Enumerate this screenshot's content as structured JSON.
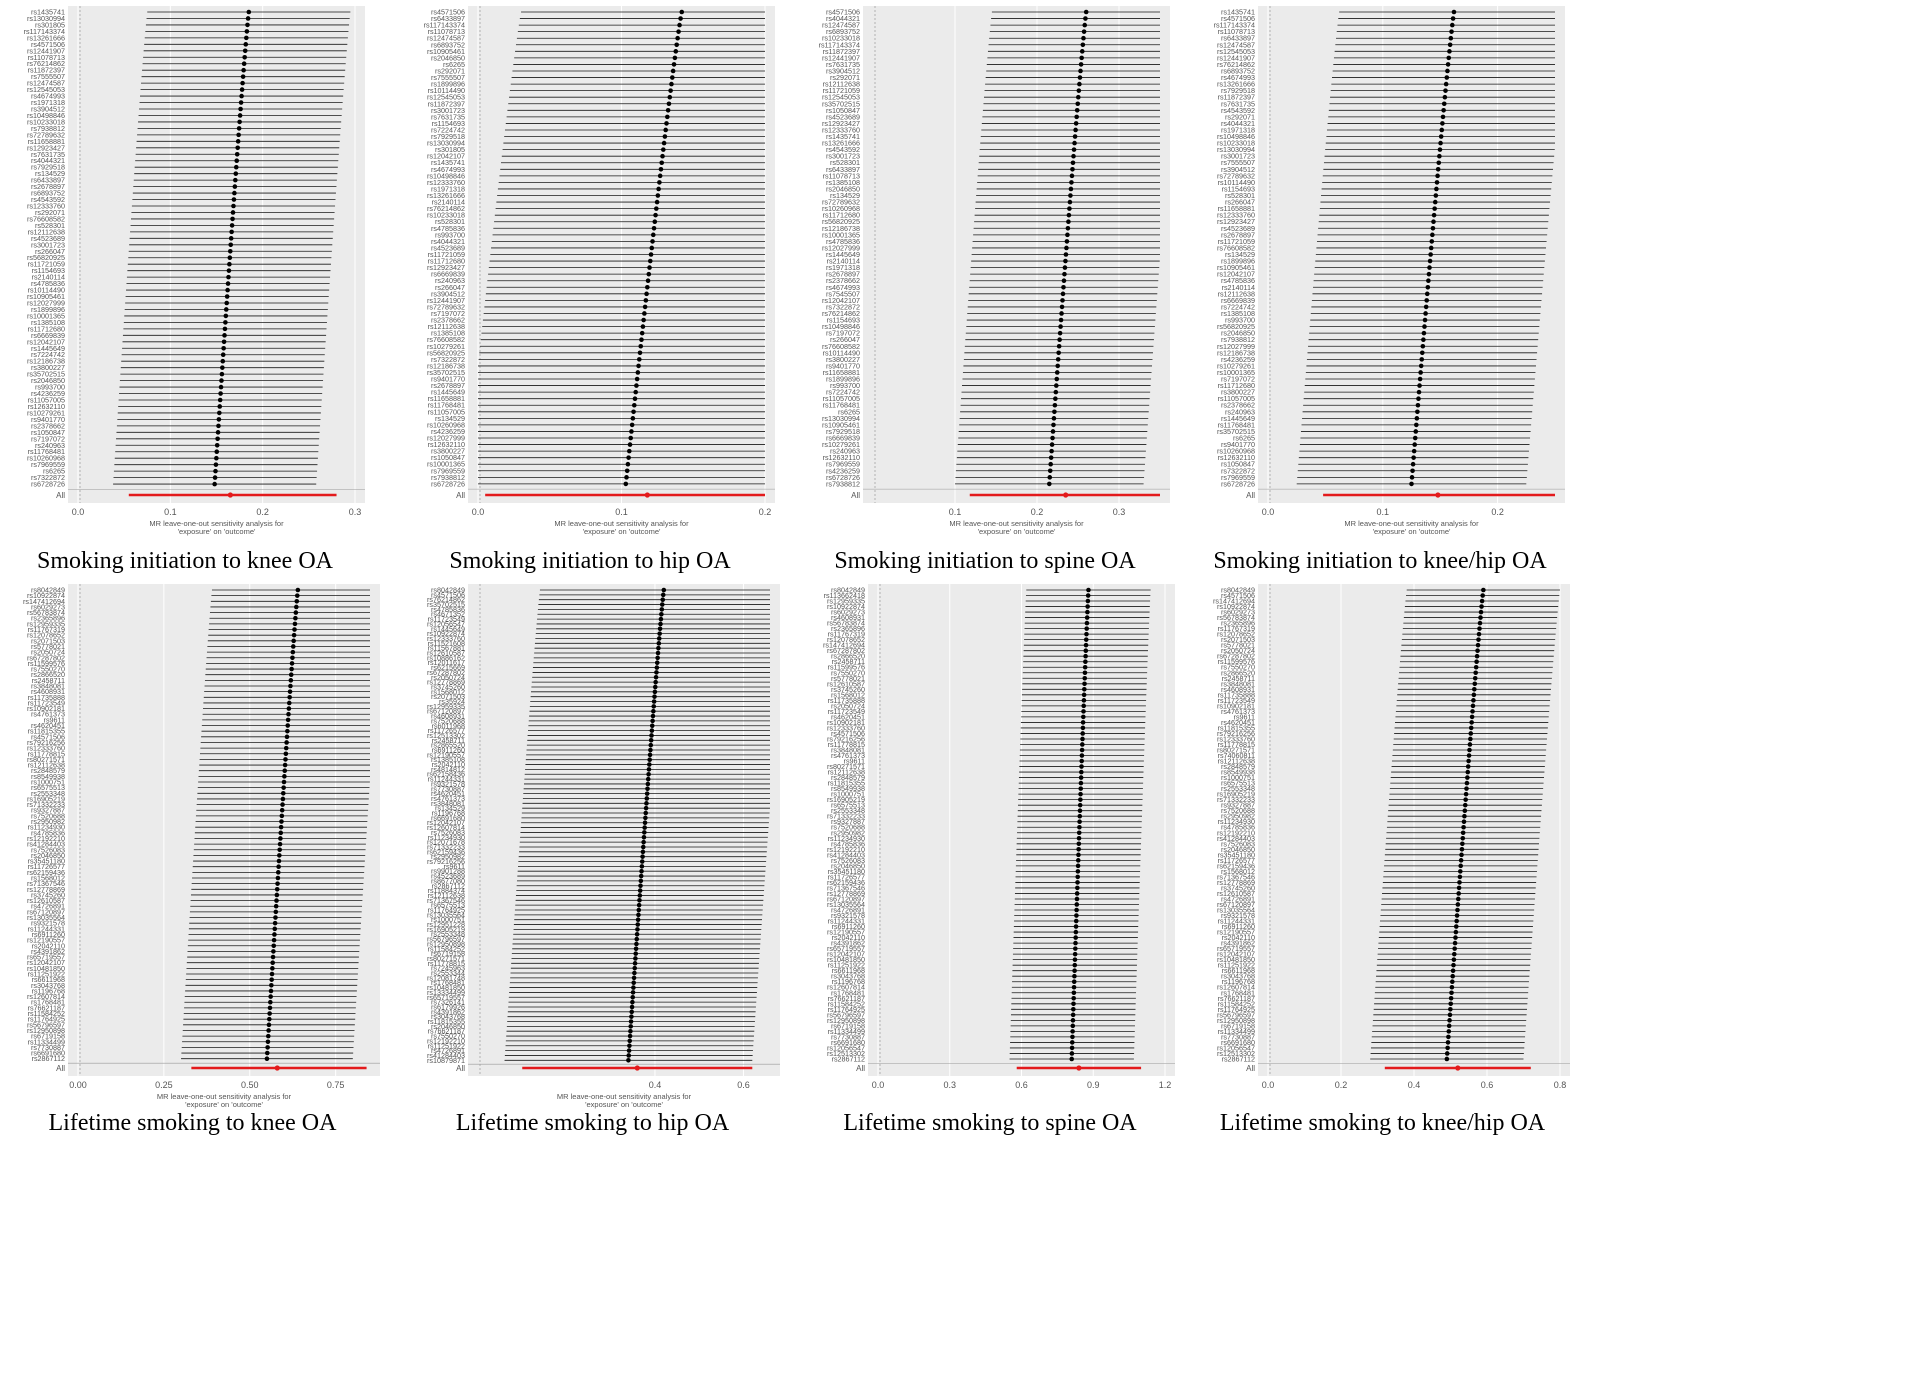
{
  "chart_data": [
    {
      "type": "scatter",
      "caption": "Smoking initiation to knee OA",
      "xlabel": "MR leave-one-out sensitivity analysis for 'exposure' on 'outcome'",
      "xlim": [
        0,
        0.3
      ],
      "xticks": [
        "0.0",
        "0.1",
        "0.2",
        "0.3"
      ],
      "overall_label": "All",
      "overall": {
        "b": 0.165,
        "lo": 0.055,
        "hi": 0.28
      },
      "snps": [
        "rs1435741",
        "rs13030994",
        "rs301805",
        "rs117143374",
        "rs13261666",
        "rs4571506",
        "rs12441907",
        "rs11078713",
        "rs76214862",
        "rs11872397",
        "rs7555507",
        "rs12474587",
        "rs12545053",
        "rs4674993",
        "rs1971318",
        "rs3904512",
        "rs10498846",
        "rs10233018",
        "rs7938812",
        "rs72789632",
        "rs11658881",
        "rs12923427",
        "rs7631735",
        "rs4044321",
        "rs7929518",
        "rs134529",
        "rs6433897",
        "rs2678897",
        "rs6893752",
        "rs4543592",
        "rs12333760",
        "rs292071",
        "rs76608582",
        "rs528301",
        "rs12112638",
        "rs4523689",
        "rs3001723",
        "rs266047",
        "rs56820925",
        "rs11721059",
        "rs1154693",
        "rs2140114",
        "rs4785836",
        "rs10114490",
        "rs10905461",
        "rs12027999",
        "rs1899896",
        "rs10001365",
        "rs1385108",
        "rs11712680",
        "rs6669839",
        "rs12042107",
        "rs1445649",
        "rs7224742",
        "rs12186738",
        "rs3800227",
        "rs35702515",
        "rs2046850",
        "rs993700",
        "rs4236259",
        "rs11057005",
        "rs12632110",
        "rs10279261",
        "rs9401770",
        "rs2378662",
        "rs1050847",
        "rs7197072",
        "rs240963",
        "rs11768481",
        "rs10260968",
        "rs7969559",
        "rs6265",
        "rs7322872",
        "rs6728726"
      ],
      "b_range": [
        0.185,
        0.148
      ],
      "ci_half": 0.11
    },
    {
      "type": "scatter",
      "caption": "Smoking initiation to hip OA",
      "xlabel": "MR leave-one-out sensitivity analysis for 'exposure' on 'outcome'",
      "xlim": [
        0,
        0.2
      ],
      "xticks": [
        "0.0",
        "0.1",
        "0.2"
      ],
      "overall_label": "All",
      "overall": {
        "b": 0.118,
        "lo": 0.005,
        "hi": 0.232
      },
      "snps": [
        "rs4571506",
        "rs6433897",
        "rs117143374",
        "rs11078713",
        "rs12474587",
        "rs6893752",
        "rs10905461",
        "rs2046850",
        "rs6265",
        "rs292071",
        "rs7555507",
        "rs1899896",
        "rs10114490",
        "rs12545053",
        "rs11872397",
        "rs3001723",
        "rs7631735",
        "rs1154693",
        "rs7224742",
        "rs7929518",
        "rs13030994",
        "rs301805",
        "rs12042107",
        "rs1435741",
        "rs4674993",
        "rs10498846",
        "rs12333760",
        "rs1971318",
        "rs13261666",
        "rs2140114",
        "rs76214862",
        "rs10233018",
        "rs528301",
        "rs4785836",
        "rs993700",
        "rs4044321",
        "rs4523689",
        "rs11721059",
        "rs11712680",
        "rs12923427",
        "rs6669839",
        "rs240963",
        "rs266047",
        "rs3904512",
        "rs12441907",
        "rs72789632",
        "rs7197072",
        "rs2378662",
        "rs12112638",
        "rs1385108",
        "rs76608582",
        "rs10279261",
        "rs56820925",
        "rs7322872",
        "rs12186738",
        "rs35702515",
        "rs9401770",
        "rs2678897",
        "rs1445649",
        "rs11658881",
        "rs11768481",
        "rs11057005",
        "rs134529",
        "rs10260968",
        "rs4236259",
        "rs12027999",
        "rs12632110",
        "rs3800227",
        "rs1050847",
        "rs10001365",
        "rs7969559",
        "rs7938812",
        "rs6728726"
      ],
      "b_range": [
        0.142,
        0.103
      ],
      "ci_half": 0.112
    },
    {
      "type": "scatter",
      "caption": "Smoking initiation to spine OA",
      "xlabel": "MR leave-one-out sensitivity analysis for 'exposure' on 'outcome'",
      "xlim": [
        0,
        0.35
      ],
      "xticks": [
        "0.1",
        "0.2",
        "0.3"
      ],
      "xtick_values": [
        0.1,
        0.2,
        0.3
      ],
      "overall_label": "All",
      "overall": {
        "b": 0.235,
        "lo": 0.118,
        "hi": 0.35
      },
      "snps": [
        "rs4571506",
        "rs4044321",
        "rs12474587",
        "rs6893752",
        "rs10233018",
        "rs117143374",
        "rs11872397",
        "rs12441907",
        "rs7631735",
        "rs3904512",
        "rs292071",
        "rs12112638",
        "rs11721059",
        "rs12545053",
        "rs35702515",
        "rs1050847",
        "rs4523689",
        "rs12923427",
        "rs12333760",
        "rs1435741",
        "rs13261666",
        "rs4543592",
        "rs3001723",
        "rs528301",
        "rs6433897",
        "rs11078713",
        "rs1385108",
        "rs2046850",
        "rs134529",
        "rs72789632",
        "rs10260968",
        "rs11712680",
        "rs56820925",
        "rs12186738",
        "rs10001365",
        "rs4785836",
        "rs12027999",
        "rs1445649",
        "rs2140114",
        "rs1971318",
        "rs2678897",
        "rs2378662",
        "rs4674993",
        "rs7545507",
        "rs12042107",
        "rs7322872",
        "rs76214862",
        "rs1154693",
        "rs10498846",
        "rs7197072",
        "rs266047",
        "rs76608582",
        "rs10114490",
        "rs3800227",
        "rs9401770",
        "rs11658881",
        "rs1899896",
        "rs993700",
        "rs7224742",
        "rs11057005",
        "rs11768481",
        "rs6265",
        "rs13030994",
        "rs10905461",
        "rs7929518",
        "rs6669839",
        "rs10279261",
        "rs240963",
        "rs12632110",
        "rs7969559",
        "rs4236259",
        "rs6728726",
        "rs7938812"
      ],
      "b_range": [
        0.26,
        0.215
      ],
      "ci_half": 0.115
    },
    {
      "type": "scatter",
      "caption": "Smoking initiation to knee/hip OA",
      "xlabel": "MR leave-one-out sensitivity analysis for 'exposure' on 'outcome'",
      "xlim": [
        0,
        0.25
      ],
      "xticks": [
        "0.0",
        "0.1",
        "0.2"
      ],
      "xtick_values": [
        0,
        0.1,
        0.2
      ],
      "overall_label": "All",
      "overall": {
        "b": 0.148,
        "lo": 0.048,
        "hi": 0.25
      },
      "snps": [
        "rs1435741",
        "rs4571506",
        "rs117143374",
        "rs11078713",
        "rs6433897",
        "rs12474587",
        "rs12545053",
        "rs12441907",
        "rs76214862",
        "rs6893752",
        "rs4674993",
        "rs13261666",
        "rs7929518",
        "rs11872397",
        "rs7631735",
        "rs4543592",
        "rs292071",
        "rs4044321",
        "rs1971318",
        "rs10498846",
        "rs10233018",
        "rs13030994",
        "rs3001723",
        "rs7555507",
        "rs3904512",
        "rs72789632",
        "rs10114490",
        "rs1154693",
        "rs528301",
        "rs266047",
        "rs11658881",
        "rs12333760",
        "rs12923427",
        "rs4523689",
        "rs2678897",
        "rs11721059",
        "rs76608582",
        "rs134529",
        "rs1899896",
        "rs10905461",
        "rs12042107",
        "rs4785836",
        "rs2140114",
        "rs12112638",
        "rs6669839",
        "rs7224742",
        "rs1385108",
        "rs993700",
        "rs56820925",
        "rs2046850",
        "rs7938812",
        "rs12027999",
        "rs12186738",
        "rs4236259",
        "rs10279261",
        "rs10001365",
        "rs7197072",
        "rs11712680",
        "rs3800227",
        "rs11057005",
        "rs2378662",
        "rs240963",
        "rs1445649",
        "rs11768481",
        "rs35702515",
        "rs6265",
        "rs9401770",
        "rs10260968",
        "rs12632110",
        "rs1050847",
        "rs7322872",
        "rs7969559",
        "rs6728726"
      ],
      "b_range": [
        0.162,
        0.125
      ],
      "ci_half": 0.1
    },
    {
      "type": "scatter",
      "caption": "Lifetime smoking to knee OA",
      "xlabel": "MR leave-one-out sensitivity analysis for 'exposure' on 'outcome'",
      "xlim": [
        0,
        0.85
      ],
      "xticks": [
        "0.00",
        "0.25",
        "0.50",
        "0.75"
      ],
      "xtick_values": [
        0,
        0.25,
        0.5,
        0.75
      ],
      "overall_label": "All",
      "overall": {
        "b": 0.58,
        "lo": 0.33,
        "hi": 0.84
      },
      "snps": [
        "rs8042849",
        "rs10922874",
        "rs147412694",
        "rs6029273",
        "rs56783874",
        "rs2365896",
        "rs12959335",
        "rs11767319",
        "rs12078652",
        "rs2071503",
        "rs5778021",
        "rs2050724",
        "rs67287802",
        "rs11599576",
        "rs7550270",
        "rs2866520",
        "rs2458711",
        "rs3848081",
        "rs4608931",
        "rs11735888",
        "rs11723549",
        "rs10902181",
        "rs4761373",
        "rs9611",
        "rs4620451",
        "rs11815355",
        "rs4571506",
        "rs79216256",
        "rs12333760",
        "rs11778815",
        "rs80271571",
        "rs12112638",
        "rs2848579",
        "rs8549938",
        "rs1000751",
        "rs6575513",
        "rs2553348",
        "rs16905219",
        "rs71332233",
        "rs9327887",
        "rs7520688",
        "rs2950982",
        "rs11234930",
        "rs4785836",
        "rs12192210",
        "rs41284403",
        "rs7526083",
        "rs2046850",
        "rs35451180",
        "rs11726577",
        "rs62159436",
        "rs1568012",
        "rs71367546",
        "rs12778869",
        "rs3745260",
        "rs12610587",
        "rs4726891",
        "rs67120897",
        "rs13035564",
        "rs9321578",
        "rs11244331",
        "rs6911260",
        "rs12190557",
        "rs2042110",
        "rs4391862",
        "rs65719557",
        "rs12042107",
        "rs10481850",
        "rs11251922",
        "rs6611968",
        "rs3043768",
        "rs1196768",
        "rs12607814",
        "rs1768481",
        "rs76621187",
        "rs11584252",
        "rs11764925",
        "rs56796597",
        "rs12950898",
        "rs6719158",
        "rs11334499",
        "rs7730887",
        "rs6691680",
        "rs2867112"
      ],
      "b_range": [
        0.64,
        0.55
      ],
      "ci_half": 0.25
    },
    {
      "type": "scatter",
      "caption": "Lifetime smoking to hip OA",
      "xlabel": "MR leave-one-out sensitivity analysis for 'exposure' on 'outcome'",
      "xlim": [
        0,
        0.66
      ],
      "xticks": [
        "0.4",
        "0.6"
      ],
      "xtick_values": [
        0.4,
        0.6
      ],
      "overall_label": "All",
      "overall": {
        "b": 0.36,
        "lo": 0.1,
        "hi": 0.62
      },
      "snps": [
        "rs8042849",
        "rs4571506",
        "rs76214862",
        "rs35702515",
        "rs4785836",
        "rs4671352",
        "rs11723549",
        "rs12056547",
        "rs1445649",
        "rs10922874",
        "rs12333760",
        "rs11521608",
        "rs11567881",
        "rs12610587",
        "rs10886162",
        "rs12011617",
        "rs6215669",
        "rs67287802",
        "rs2050724",
        "rs12778869",
        "rs3745260",
        "rs1568012",
        "rs2071503",
        "rs35924",
        "rs12959335",
        "rs67120897",
        "rs4608931",
        "rs7520688",
        "rs6011968",
        "rs11726577",
        "rs12513302",
        "rs2458711",
        "rs2865520",
        "rs6911260",
        "rs12190557",
        "rs1385108",
        "rs2042110",
        "rs4814812",
        "rs62158436",
        "rs11244331",
        "rs9321578",
        "rs7730887",
        "rs4620451",
        "rs4761373",
        "rs3848081",
        "rs134529",
        "rs1196768",
        "rs6691680",
        "rs12042107",
        "rs12607814",
        "rs7526083",
        "rs11234930",
        "rs12071678",
        "rs71332233",
        "rs62159436",
        "rs2950982",
        "rs79216256",
        "rs9611",
        "rs9901288",
        "rs4523689",
        "rs8677080",
        "rs2867112",
        "rs11884374",
        "rs12112638",
        "rs71367546",
        "rs6575513",
        "rs11764925",
        "rs13035564",
        "rs1000751",
        "rs12951228",
        "rs16905219",
        "rs2553348",
        "rs56796597",
        "rs12950898",
        "rs11584252",
        "rs6719158",
        "rs80271571",
        "rs11778815",
        "rs7245963",
        "rs2553344",
        "rs12081748",
        "rs1768481",
        "rs10481850",
        "rs13334499",
        "rs65719557",
        "rs7326141",
        "rs6179926",
        "rs4391862",
        "rs3043768",
        "rs11815355",
        "rs2046850",
        "rs76621187",
        "rs7550270",
        "rs12192210",
        "rs11251922",
        "rs4726891",
        "rs41284403",
        "rs10879871"
      ],
      "b_range": [
        0.42,
        0.34
      ],
      "ci_half": 0.28
    },
    {
      "type": "scatter",
      "caption": "Lifetime smoking to spine OA",
      "xlabel": "",
      "xlim": [
        0,
        1.2
      ],
      "xticks": [
        "0.0",
        "0.3",
        "0.6",
        "0.9",
        "1.2"
      ],
      "xtick_values": [
        0,
        0.3,
        0.6,
        0.9,
        1.2
      ],
      "overall_label": "All",
      "overall": {
        "b": 0.84,
        "lo": 0.58,
        "hi": 1.1
      },
      "snps": [
        "rs8042849",
        "rs113662418",
        "rs12959335",
        "rs10922874",
        "rs6029273",
        "rs4608931",
        "rs56783874",
        "rs2365896",
        "rs11767319",
        "rs12078652",
        "rs147412694",
        "rs67287802",
        "rs2866520",
        "rs2458711",
        "rs11599576",
        "rs7550270",
        "rs5778021",
        "rs12610587",
        "rs3745260",
        "rs1568012",
        "rs11735888",
        "rs2050724",
        "rs11723549",
        "rs4620451",
        "rs10902181",
        "rs12333760",
        "rs4571506",
        "rs79216256",
        "rs11778815",
        "rs3848081",
        "rs4761373",
        "rs9611",
        "rs80271571",
        "rs12112638",
        "rs2848579",
        "rs11815355",
        "rs8549938",
        "rs1000751",
        "rs16905219",
        "rs6575513",
        "rs2553348",
        "rs71332233",
        "rs9327887",
        "rs7520688",
        "rs2950982",
        "rs11234930",
        "rs4785836",
        "rs12192210",
        "rs41284403",
        "rs7526083",
        "rs2046850",
        "rs35451180",
        "rs11726577",
        "rs62159436",
        "rs71367546",
        "rs12778869",
        "rs67120897",
        "rs13035564",
        "rs4726891",
        "rs9321578",
        "rs11244331",
        "rs6911260",
        "rs12190557",
        "rs2042110",
        "rs4391862",
        "rs65719557",
        "rs12042107",
        "rs10481850",
        "rs11251922",
        "rs6611968",
        "rs3043768",
        "rs1196768",
        "rs12607814",
        "rs1768481",
        "rs76621187",
        "rs11584252",
        "rs11764925",
        "rs56796597",
        "rs12950898",
        "rs6719158",
        "rs11334499",
        "rs7730887",
        "rs6691680",
        "rs12056547",
        "rs12513302",
        "rs2867112"
      ],
      "b_range": [
        0.88,
        0.81
      ],
      "ci_half": 0.26
    },
    {
      "type": "scatter",
      "caption": "Lifetime smoking to knee/hip OA",
      "xlabel": "",
      "xlim": [
        0,
        0.8
      ],
      "xticks": [
        "0.0",
        "0.2",
        "0.4",
        "0.6",
        "0.8"
      ],
      "xtick_values": [
        0,
        0.2,
        0.4,
        0.6,
        0.8
      ],
      "overall_label": "All",
      "overall": {
        "b": 0.52,
        "lo": 0.32,
        "hi": 0.72
      },
      "snps": [
        "rs8042849",
        "rs4571506",
        "rs147412694",
        "rs10922874",
        "rs6029273",
        "rs56783874",
        "rs2365896",
        "rs11767319",
        "rs12078652",
        "rs2071503",
        "rs5778021",
        "rs2050724",
        "rs67287802",
        "rs11599576",
        "rs7550270",
        "rs2866520",
        "rs2458711",
        "rs3848081",
        "rs4608931",
        "rs11735888",
        "rs11723549",
        "rs10902181",
        "rs4761373",
        "rs9611",
        "rs4620451",
        "rs11815355",
        "rs79216256",
        "rs12333760",
        "rs11778815",
        "rs80271571",
        "rs74060811",
        "rs12112638",
        "rs2848579",
        "rs8549938",
        "rs1000751",
        "rs6575513",
        "rs2553348",
        "rs16905219",
        "rs71332233",
        "rs9327887",
        "rs7520688",
        "rs2950982",
        "rs11234930",
        "rs4785836",
        "rs12192210",
        "rs41284403",
        "rs7526083",
        "rs2046850",
        "rs35451180",
        "rs11726577",
        "rs62159436",
        "rs1568012",
        "rs71367546",
        "rs12778869",
        "rs3745260",
        "rs12610587",
        "rs4726891",
        "rs67120897",
        "rs13035564",
        "rs9321578",
        "rs11244331",
        "rs6911260",
        "rs12190557",
        "rs2042110",
        "rs4391862",
        "rs65719557",
        "rs12042107",
        "rs10481850",
        "rs11251922",
        "rs6611968",
        "rs3043768",
        "rs1196768",
        "rs12607814",
        "rs1768481",
        "rs76621187",
        "rs11584252",
        "rs11764925",
        "rs56796597",
        "rs12950898",
        "rs6719158",
        "rs11334499",
        "rs7730887",
        "rs6691680",
        "rs12056547",
        "rs12513302",
        "rs2867112"
      ],
      "b_range": [
        0.59,
        0.49
      ],
      "ci_half": 0.21
    }
  ]
}
